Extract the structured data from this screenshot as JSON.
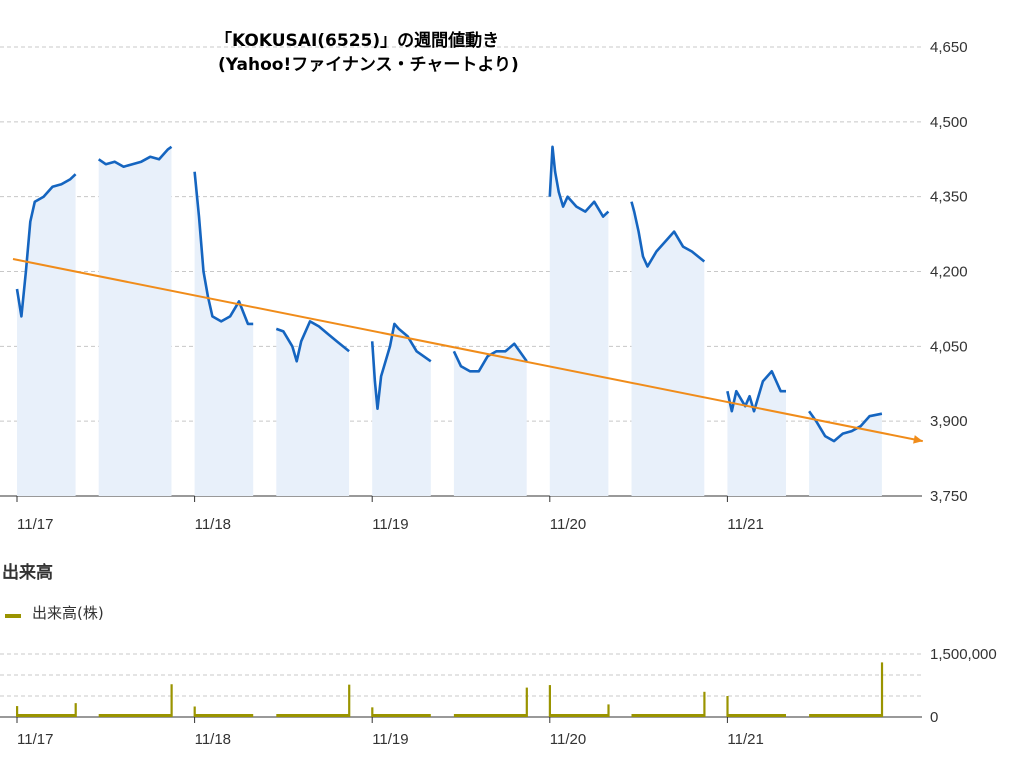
{
  "title": {
    "line1": "「KOKUSAI(6525)」の週間値動き",
    "line2": "(Yahoo!ファイナンス・チャートより)"
  },
  "colors": {
    "price_line": "#1565c0",
    "session_fill": "#e8f0fa",
    "trend_line": "#f08c1a",
    "volume_bar": "#9a9400",
    "grid": "#c8c8c8",
    "axis": "#333333"
  },
  "chart_data": [
    {
      "type": "line",
      "title": "「KOKUSAI(6525)」の週間値動き",
      "ylim": [
        3750,
        4650
      ],
      "yticks": [
        "4,650",
        "4,500",
        "4,350",
        "4,200",
        "4,050",
        "3,900",
        "3,750"
      ],
      "ytick_values": [
        4650,
        4500,
        4350,
        4200,
        4050,
        3900,
        3750
      ],
      "xlim": [
        0,
        10
      ],
      "xticks": [
        {
          "label": "11/17",
          "x": 0
        },
        {
          "label": "11/18",
          "x": 2
        },
        {
          "label": "11/19",
          "x": 4
        },
        {
          "label": "11/20",
          "x": 6
        },
        {
          "label": "11/21",
          "x": 8
        }
      ],
      "grid": true,
      "series": [
        {
          "sessions": [
            {
              "x": [
                0.0,
                0.05,
                0.1,
                0.15,
                0.2,
                0.3,
                0.4,
                0.5,
                0.6,
                0.66
              ],
              "y": [
                4165,
                4110,
                4200,
                4300,
                4340,
                4350,
                4370,
                4375,
                4385,
                4395
              ]
            },
            {
              "x": [
                0.92,
                1.0,
                1.1,
                1.2,
                1.3,
                1.4,
                1.5,
                1.6,
                1.7,
                1.74
              ],
              "y": [
                4425,
                4415,
                4420,
                4410,
                4415,
                4420,
                4430,
                4425,
                4445,
                4450
              ]
            },
            {
              "x": [
                2.0,
                2.05,
                2.1,
                2.15,
                2.2,
                2.3,
                2.4,
                2.5,
                2.6,
                2.66
              ],
              "y": [
                4400,
                4310,
                4200,
                4150,
                4110,
                4100,
                4110,
                4140,
                4095,
                4095
              ]
            },
            {
              "x": [
                2.92,
                3.0,
                3.1,
                3.15,
                3.2,
                3.3,
                3.4,
                3.5,
                3.6,
                3.74
              ],
              "y": [
                4085,
                4080,
                4050,
                4020,
                4060,
                4100,
                4090,
                4075,
                4060,
                4040
              ]
            },
            {
              "x": [
                4.0,
                4.03,
                4.06,
                4.1,
                4.2,
                4.25,
                4.3,
                4.4,
                4.5,
                4.66
              ],
              "y": [
                4060,
                3980,
                3925,
                3990,
                4050,
                4095,
                4085,
                4070,
                4040,
                4020
              ]
            },
            {
              "x": [
                4.92,
                5.0,
                5.1,
                5.2,
                5.3,
                5.4,
                5.5,
                5.6,
                5.74
              ],
              "y": [
                4040,
                4010,
                4000,
                4000,
                4030,
                4040,
                4040,
                4055,
                4020
              ]
            },
            {
              "x": [
                6.0,
                6.03,
                6.06,
                6.1,
                6.15,
                6.2,
                6.3,
                6.4,
                6.5,
                6.6,
                6.66
              ],
              "y": [
                4350,
                4450,
                4400,
                4360,
                4330,
                4350,
                4330,
                4320,
                4340,
                4310,
                4320
              ]
            },
            {
              "x": [
                6.92,
                6.95,
                7.0,
                7.05,
                7.1,
                7.2,
                7.3,
                7.4,
                7.5,
                7.6,
                7.74
              ],
              "y": [
                4340,
                4320,
                4280,
                4230,
                4210,
                4240,
                4260,
                4280,
                4250,
                4240,
                4220
              ]
            },
            {
              "x": [
                8.0,
                8.05,
                8.1,
                8.2,
                8.25,
                8.3,
                8.4,
                8.5,
                8.6,
                8.66
              ],
              "y": [
                3960,
                3920,
                3960,
                3930,
                3950,
                3920,
                3980,
                4000,
                3960,
                3960
              ]
            },
            {
              "x": [
                8.92,
                9.0,
                9.1,
                9.2,
                9.3,
                9.4,
                9.5,
                9.6,
                9.74
              ],
              "y": [
                3920,
                3900,
                3870,
                3860,
                3875,
                3880,
                3890,
                3910,
                3915
              ]
            }
          ]
        }
      ],
      "trendline": {
        "x": [
          0,
          10.2
        ],
        "y": [
          4225,
          3860
        ]
      }
    },
    {
      "type": "bar",
      "title": "出来高",
      "legend": "出来高(株)",
      "ylim": [
        0,
        1500000
      ],
      "yticks": [
        "1,500,000",
        "0"
      ],
      "ytick_values": [
        1500000,
        0
      ],
      "xticks": [
        {
          "label": "11/17",
          "x": 0
        },
        {
          "label": "11/18",
          "x": 2
        },
        {
          "label": "11/19",
          "x": 4
        },
        {
          "label": "11/20",
          "x": 6
        },
        {
          "label": "11/21",
          "x": 8
        }
      ],
      "spikes": [
        {
          "x": 0.0,
          "value": 260000
        },
        {
          "x": 0.66,
          "value": 330000
        },
        {
          "x": 1.74,
          "value": 780000
        },
        {
          "x": 2.0,
          "value": 250000
        },
        {
          "x": 3.74,
          "value": 770000
        },
        {
          "x": 4.0,
          "value": 230000
        },
        {
          "x": 5.74,
          "value": 700000
        },
        {
          "x": 6.0,
          "value": 760000
        },
        {
          "x": 6.66,
          "value": 300000
        },
        {
          "x": 7.74,
          "value": 600000
        },
        {
          "x": 8.0,
          "value": 500000
        },
        {
          "x": 9.74,
          "value": 1300000
        }
      ]
    }
  ]
}
